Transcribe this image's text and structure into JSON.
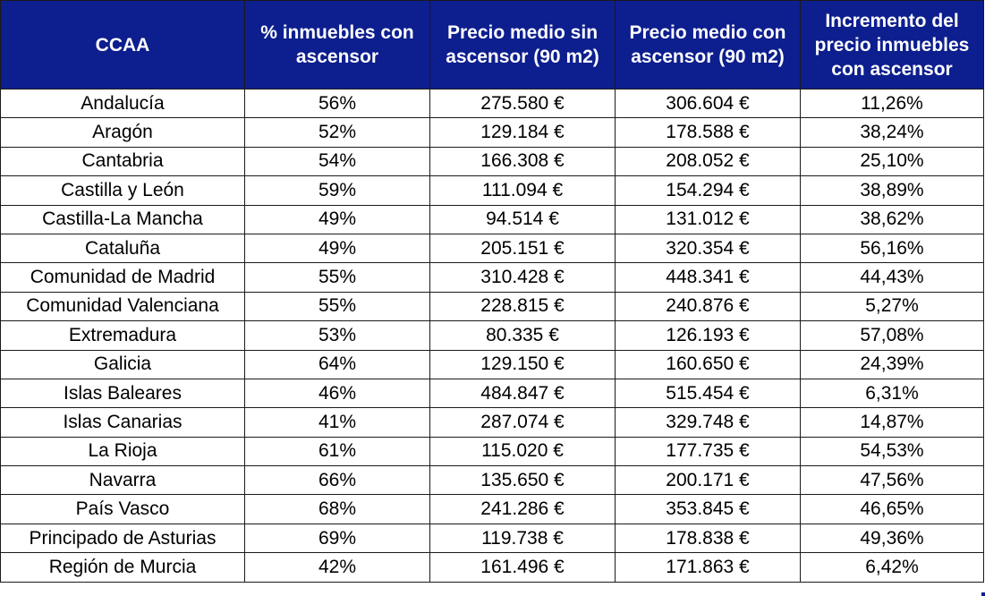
{
  "table": {
    "headers": [
      [
        "CCAA"
      ],
      [
        "% inmuebles con",
        "ascensor"
      ],
      [
        "Precio medio sin",
        "ascensor (90 m2)"
      ],
      [
        "Precio medio con",
        "ascensor (90 m2)"
      ],
      [
        "Incremento del",
        "precio inmuebles",
        "con ascensor"
      ]
    ],
    "rows": [
      [
        "Andalucía",
        "56%",
        "275.580 €",
        "306.604 €",
        "11,26%"
      ],
      [
        "Aragón",
        "52%",
        "129.184 €",
        "178.588 €",
        "38,24%"
      ],
      [
        "Cantabria",
        "54%",
        "166.308 €",
        "208.052 €",
        "25,10%"
      ],
      [
        "Castilla y León",
        "59%",
        "111.094 €",
        "154.294 €",
        "38,89%"
      ],
      [
        "Castilla-La Mancha",
        "49%",
        "94.514 €",
        "131.012 €",
        "38,62%"
      ],
      [
        "Cataluña",
        "49%",
        "205.151 €",
        "320.354 €",
        "56,16%"
      ],
      [
        "Comunidad de Madrid",
        "55%",
        "310.428 €",
        "448.341 €",
        "44,43%"
      ],
      [
        "Comunidad Valenciana",
        "55%",
        "228.815 €",
        "240.876 €",
        "5,27%"
      ],
      [
        "Extremadura",
        "53%",
        "80.335 €",
        "126.193 €",
        "57,08%"
      ],
      [
        "Galicia",
        "64%",
        "129.150 €",
        "160.650 €",
        "24,39%"
      ],
      [
        "Islas Baleares",
        "46%",
        "484.847 €",
        "515.454 €",
        "6,31%"
      ],
      [
        "Islas Canarias",
        "41%",
        "287.074 €",
        "329.748 €",
        "14,87%"
      ],
      [
        "La Rioja",
        "61%",
        "115.020 €",
        "177.735 €",
        "54,53%"
      ],
      [
        "Navarra",
        "66%",
        "135.650 €",
        "200.171 €",
        "47,56%"
      ],
      [
        "País Vasco",
        "68%",
        "241.286 €",
        "353.845 €",
        "46,65%"
      ],
      [
        "Principado de Asturias",
        "69%",
        "119.738 €",
        "178.838 €",
        "49,36%"
      ],
      [
        "Región de Murcia",
        "42%",
        "161.496 €",
        "171.863 €",
        "6,42%"
      ]
    ]
  },
  "colors": {
    "header_background": "#0d1e8e",
    "header_text": "#ffffff",
    "border": "#1a1a1a"
  }
}
